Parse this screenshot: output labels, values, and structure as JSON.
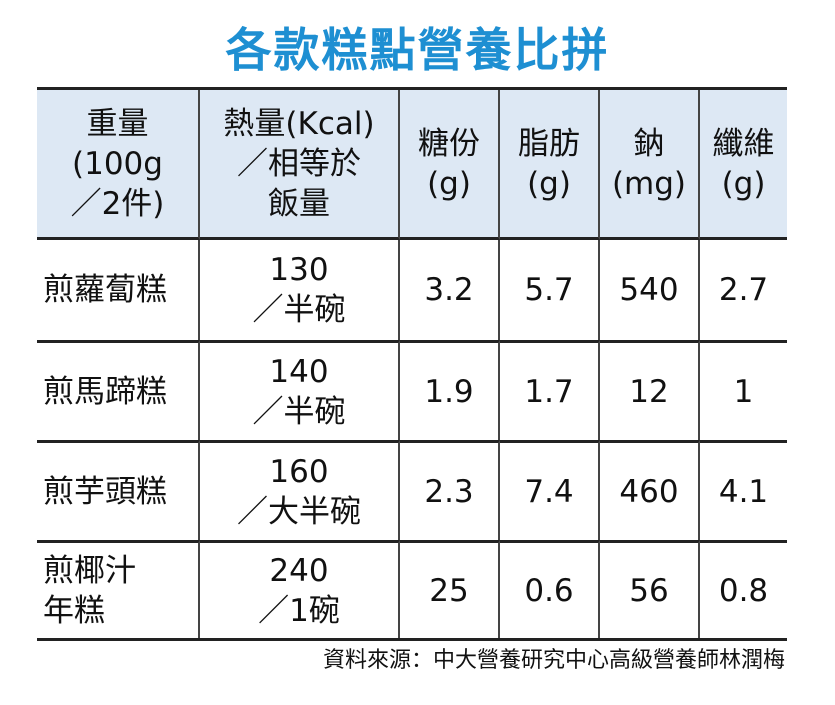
{
  "title": "各款糕點營養比拼",
  "table": {
    "header": [
      [
        "重量",
        "(100g",
        "／2件)"
      ],
      [
        "熱量(Kcal)",
        "／相等於",
        "飯量"
      ],
      [
        "糖份",
        "(g)"
      ],
      [
        "脂肪",
        "(g)"
      ],
      [
        "鈉",
        "(mg)"
      ],
      [
        "纖維",
        "(g)"
      ]
    ],
    "rows": [
      [
        [
          "煎蘿蔔糕"
        ],
        [
          "130",
          "／半碗"
        ],
        [
          "3.2"
        ],
        [
          "5.7"
        ],
        [
          "540"
        ],
        [
          "2.7"
        ]
      ],
      [
        [
          "煎馬蹄糕"
        ],
        [
          "140",
          "／半碗"
        ],
        [
          "1.9"
        ],
        [
          "1.7"
        ],
        [
          "12"
        ],
        [
          "1"
        ]
      ],
      [
        [
          "煎芋頭糕"
        ],
        [
          "160",
          "／大半碗"
        ],
        [
          "2.3"
        ],
        [
          "7.4"
        ],
        [
          "460"
        ],
        [
          "4.1"
        ]
      ],
      [
        [
          "煎椰汁",
          "年糕"
        ],
        [
          "240",
          "／1碗"
        ],
        [
          "25"
        ],
        [
          "0.6"
        ],
        [
          "56"
        ],
        [
          "0.8"
        ]
      ]
    ]
  },
  "source": "資料來源：中大營養研究中心高級營養師林潤梅"
}
